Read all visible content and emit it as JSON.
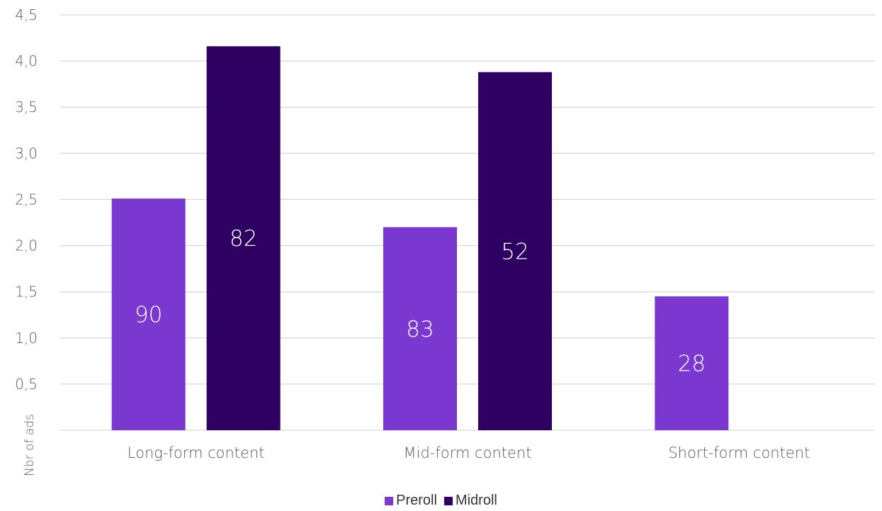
{
  "chart_data": {
    "type": "bar",
    "categories": [
      "Long-form content",
      "Mid-form content",
      "Short-form content"
    ],
    "series": [
      {
        "name": "Preroll",
        "color": "#7b38d0",
        "values": [
          2.51,
          2.2,
          1.45
        ],
        "labels": [
          "90",
          "83",
          "28"
        ]
      },
      {
        "name": "Midroll",
        "color": "#2d0062",
        "values": [
          4.16,
          3.88,
          null
        ],
        "labels": [
          "82",
          "52",
          ""
        ]
      }
    ],
    "title": "",
    "xlabel": "",
    "ylabel": "Nbr of ads",
    "ylim": [
      0,
      4.5
    ],
    "yticks": [
      "4,5",
      "4,0",
      "3,5",
      "3,0",
      "2,5",
      "2,0",
      "1,5",
      "1,0",
      "0,5"
    ],
    "grid": true,
    "legend_position": "bottom"
  }
}
